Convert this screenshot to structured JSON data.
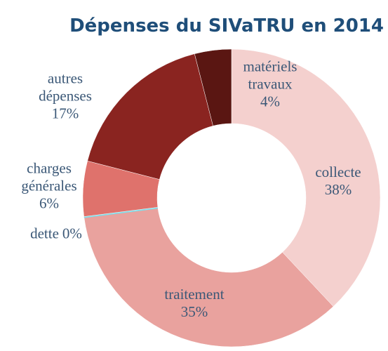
{
  "chart_data": {
    "type": "donut",
    "title": "Dépenses du SIVaTRU en 2014",
    "categories": [
      "collecte",
      "traitement",
      "dette",
      "charges générales",
      "autres dépenses",
      "matériels travaux"
    ],
    "values": [
      38,
      35,
      0,
      6,
      17,
      4
    ],
    "value_labels": [
      "38%",
      "35%",
      "0%",
      "6%",
      "17%",
      "4%"
    ],
    "colors": [
      "#f4d0ce",
      "#e9a29e",
      "#7fdde9",
      "#df726c",
      "#8a2420",
      "#5a1612"
    ]
  }
}
